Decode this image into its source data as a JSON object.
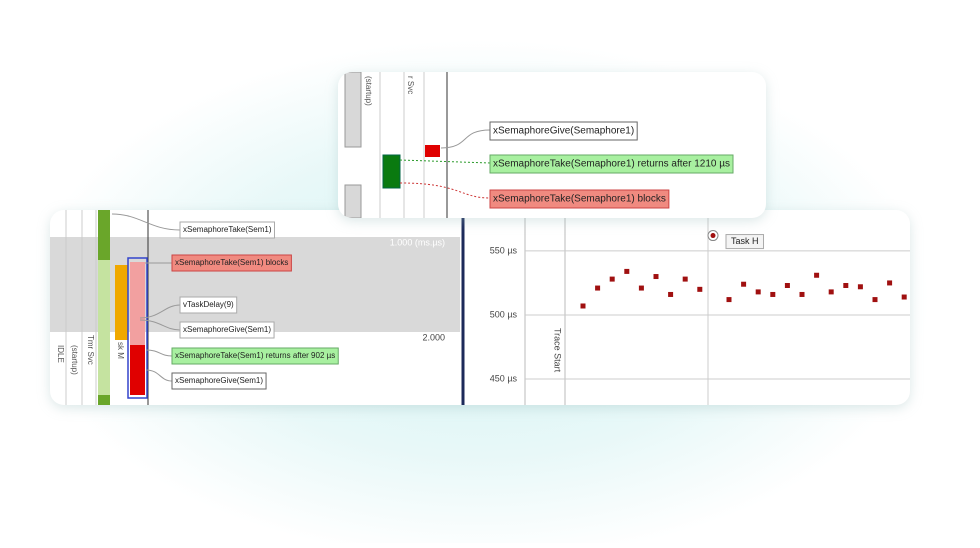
{
  "top_panel": {
    "lanes": [
      "(startup)",
      "r Svc"
    ],
    "events": [
      "xSemaphoreGive(Semaphore1)",
      "xSemaphoreTake(Semaphore1) returns after 1210 µs",
      "xSemaphoreTake(Semaphore1) blocks"
    ]
  },
  "trace_panel": {
    "lanes": [
      "IDLE",
      "(startup)",
      "Tmr Svc",
      "sk M"
    ],
    "time_marks": [
      "1.000 (ms.µs)",
      "2.000"
    ],
    "events": [
      "xSemaphoreTake(Sem1)",
      "xSemaphoreTake(Sem1) blocks",
      "vTaskDelay(9)",
      "xSemaphoreGive(Sem1)",
      "xSemaphoreTake(Sem1) returns after 902 µs",
      "xSemaphoreGive(Sem1)"
    ]
  },
  "plot": {
    "ylim": [
      430,
      580
    ],
    "yticks": [
      {
        "value": 550,
        "label": "550 µs"
      },
      {
        "value": 500,
        "label": "500 µs"
      },
      {
        "value": 450,
        "label": "450 µs"
      }
    ],
    "trace_start": "Trace Start",
    "color": "#a01010",
    "values": [
      507,
      521,
      528,
      534,
      521,
      530,
      516,
      528,
      520,
      null,
      512,
      524,
      518,
      516,
      523,
      516,
      531,
      518,
      523,
      522,
      512,
      525,
      514
    ],
    "task_h": {
      "label": "Task H",
      "value": 562
    }
  }
}
